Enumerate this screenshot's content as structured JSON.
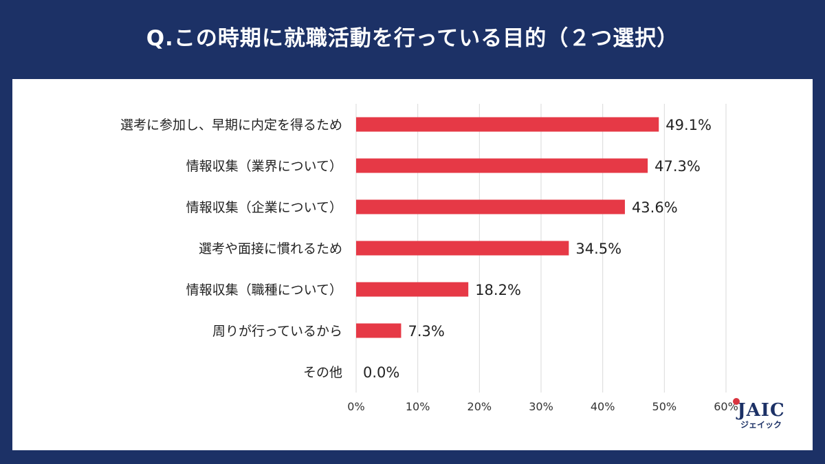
{
  "title": "Q.この時期に就職活動を行っている目的（２つ選択）",
  "logo": {
    "main": "JAIC",
    "sub": "ジェイック",
    "accent": "#d9343f"
  },
  "chart_data": {
    "type": "bar",
    "orientation": "horizontal",
    "title": "Q.この時期に就職活動を行っている目的（２つ選択）",
    "categories": [
      "選考に参加し、早期に内定を得るため",
      "情報収集（業界について）",
      "情報収集（企業について）",
      "選考や面接に慣れるため",
      "情報収集（職種について）",
      "周りが行っているから",
      "その他"
    ],
    "values": [
      49.1,
      47.3,
      43.6,
      34.5,
      18.2,
      7.3,
      0.0
    ],
    "value_labels": [
      "49.1%",
      "47.3%",
      "43.6%",
      "34.5%",
      "18.2%",
      "7.3%",
      "0.0%"
    ],
    "xlim": [
      0,
      60
    ],
    "xticks": [
      0,
      10,
      20,
      30,
      40,
      50,
      60
    ],
    "xtick_labels": [
      "0%",
      "10%",
      "20%",
      "30%",
      "40%",
      "50%",
      "60%"
    ],
    "xlabel": "",
    "ylabel": "",
    "grid": true,
    "bar_color": "#e63946",
    "grid_color": "#d9d9d9"
  }
}
